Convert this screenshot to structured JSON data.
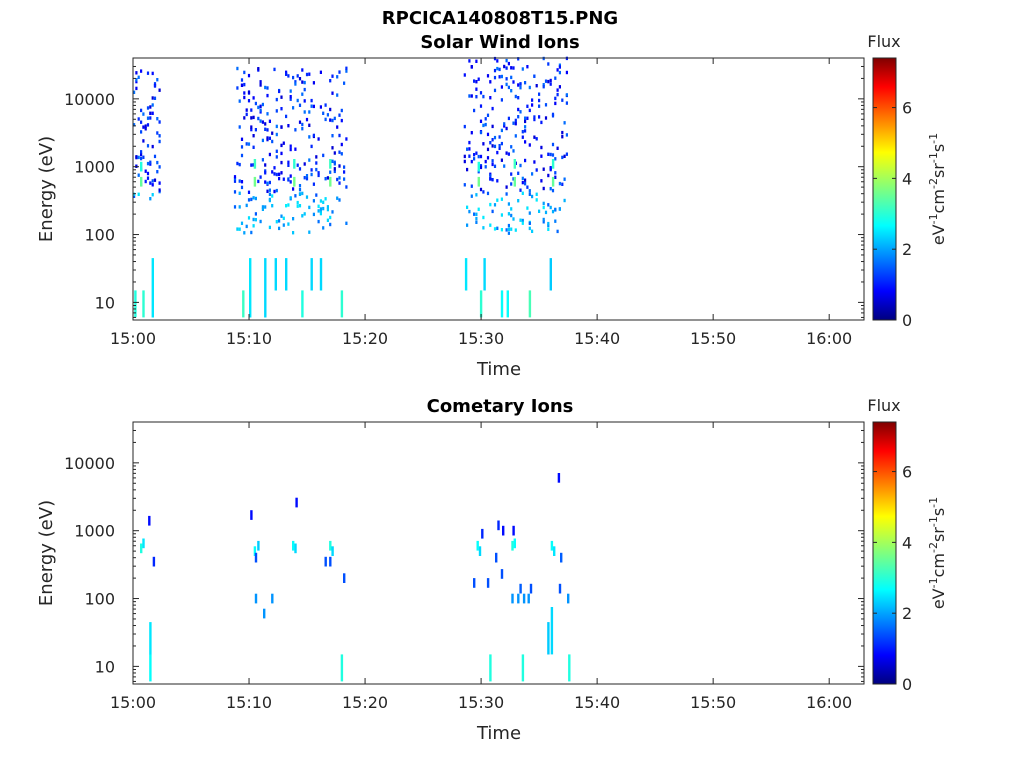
{
  "figure_title": "RPCICA140808T15.PNG",
  "chart_data": [
    {
      "type": "heatmap",
      "title": "Solar Wind Ions",
      "xlabel": "Time",
      "ylabel": "Energy (eV)",
      "x_range": [
        "15:00",
        "16:03"
      ],
      "x_ticks": [
        "15:00",
        "15:10",
        "15:20",
        "15:30",
        "15:40",
        "15:50",
        "16:00"
      ],
      "y_scale": "log",
      "y_range": [
        5.5,
        40000
      ],
      "y_ticks": [
        "10",
        "100",
        "1000",
        "10000"
      ],
      "grid": false,
      "colorbar": {
        "title": "Flux",
        "label": "eV-1cm-2sr-1s-1",
        "range": [
          0,
          7.4
        ],
        "ticks": [
          "0",
          "2",
          "4",
          "6"
        ],
        "colormap": "jet"
      },
      "bursts": [
        {
          "t0": 0.0,
          "t1": 2.2,
          "e_min": 300,
          "e_max": 25000,
          "peak_energy": 600
        },
        {
          "t0": 8.7,
          "t1": 18.4,
          "e_min": 100,
          "e_max": 28000,
          "peak_energy": 650
        },
        {
          "t0": 28.5,
          "t1": 37.5,
          "e_min": 100,
          "e_max": 38000,
          "peak_energy": 650
        }
      ],
      "cells": [
        {
          "t": 0.6,
          "e": 600,
          "v": 3.5
        },
        {
          "t": 0.6,
          "e": 1000,
          "v": 3.0
        },
        {
          "t": 10.4,
          "e": 600,
          "v": 3.6
        },
        {
          "t": 10.4,
          "e": 1100,
          "v": 3.2
        },
        {
          "t": 13.8,
          "e": 600,
          "v": 3.6
        },
        {
          "t": 13.8,
          "e": 1100,
          "v": 3.1
        },
        {
          "t": 16.9,
          "e": 600,
          "v": 3.6
        },
        {
          "t": 16.9,
          "e": 1100,
          "v": 3.2
        },
        {
          "t": 29.7,
          "e": 600,
          "v": 3.6
        },
        {
          "t": 29.7,
          "e": 1000,
          "v": 3.0
        },
        {
          "t": 32.8,
          "e": 600,
          "v": 3.5
        },
        {
          "t": 32.8,
          "e": 1100,
          "v": 3.2
        },
        {
          "t": 36.1,
          "e": 600,
          "v": 3.5
        },
        {
          "t": 36.1,
          "e": 1100,
          "v": 3.1
        }
      ],
      "low_energy_streaks": [
        {
          "t": 0.1,
          "e0": 6,
          "e1": 15,
          "v": 3.0
        },
        {
          "t": 0.8,
          "e0": 6,
          "e1": 15,
          "v": 3.1
        },
        {
          "t": 1.6,
          "e0": 6,
          "e1": 45,
          "v": 2.6
        },
        {
          "t": 9.4,
          "e0": 6,
          "e1": 15,
          "v": 3.2
        },
        {
          "t": 10.0,
          "e0": 6,
          "e1": 45,
          "v": 2.6
        },
        {
          "t": 11.3,
          "e0": 6,
          "e1": 45,
          "v": 2.5
        },
        {
          "t": 12.2,
          "e0": 15,
          "e1": 45,
          "v": 2.5
        },
        {
          "t": 13.1,
          "e0": 15,
          "e1": 45,
          "v": 2.5
        },
        {
          "t": 14.5,
          "e0": 6,
          "e1": 15,
          "v": 3.0
        },
        {
          "t": 15.3,
          "e0": 15,
          "e1": 45,
          "v": 2.5
        },
        {
          "t": 16.1,
          "e0": 15,
          "e1": 45,
          "v": 2.5
        },
        {
          "t": 17.9,
          "e0": 6,
          "e1": 15,
          "v": 3.1
        },
        {
          "t": 28.6,
          "e0": 15,
          "e1": 45,
          "v": 2.6
        },
        {
          "t": 29.9,
          "e0": 6,
          "e1": 15,
          "v": 3.1
        },
        {
          "t": 30.2,
          "e0": 15,
          "e1": 45,
          "v": 2.5
        },
        {
          "t": 31.7,
          "e0": 6,
          "e1": 15,
          "v": 2.8
        },
        {
          "t": 32.2,
          "e0": 6,
          "e1": 15,
          "v": 2.8
        },
        {
          "t": 34.1,
          "e0": 6,
          "e1": 15,
          "v": 3.3
        },
        {
          "t": 35.9,
          "e0": 15,
          "e1": 45,
          "v": 2.4
        }
      ]
    },
    {
      "type": "heatmap",
      "title": "Cometary Ions",
      "xlabel": "Time",
      "ylabel": "Energy (eV)",
      "x_range": [
        "15:00",
        "16:03"
      ],
      "x_ticks": [
        "15:00",
        "15:10",
        "15:20",
        "15:30",
        "15:40",
        "15:50",
        "16:00"
      ],
      "y_scale": "log",
      "y_range": [
        5.5,
        40000
      ],
      "y_ticks": [
        "10",
        "100",
        "1000",
        "10000"
      ],
      "grid": false,
      "colorbar": {
        "title": "Flux",
        "label": "eV-1cm-2sr-1s-1",
        "range": [
          0,
          7.4
        ],
        "ticks": [
          "0",
          "2",
          "4",
          "6"
        ],
        "colormap": "jet"
      },
      "cells": [
        {
          "t": 0.6,
          "e": 550,
          "v": 3.0
        },
        {
          "t": 0.8,
          "e": 650,
          "v": 2.6
        },
        {
          "t": 1.3,
          "e": 1400,
          "v": 1.0
        },
        {
          "t": 1.7,
          "e": 350,
          "v": 1.2
        },
        {
          "t": 10.1,
          "e": 1700,
          "v": 1.0
        },
        {
          "t": 10.4,
          "e": 500,
          "v": 2.8
        },
        {
          "t": 10.5,
          "e": 400,
          "v": 1.5
        },
        {
          "t": 10.7,
          "e": 600,
          "v": 2.4
        },
        {
          "t": 10.5,
          "e": 100,
          "v": 2.0
        },
        {
          "t": 11.2,
          "e": 60,
          "v": 2.0
        },
        {
          "t": 11.9,
          "e": 100,
          "v": 2.0
        },
        {
          "t": 13.7,
          "e": 600,
          "v": 2.8
        },
        {
          "t": 13.9,
          "e": 550,
          "v": 2.5
        },
        {
          "t": 14.0,
          "e": 2600,
          "v": 1.0
        },
        {
          "t": 16.5,
          "e": 350,
          "v": 1.5
        },
        {
          "t": 16.9,
          "e": 600,
          "v": 3.0
        },
        {
          "t": 17.1,
          "e": 500,
          "v": 2.5
        },
        {
          "t": 16.9,
          "e": 350,
          "v": 1.5
        },
        {
          "t": 18.1,
          "e": 200,
          "v": 1.5
        },
        {
          "t": 29.3,
          "e": 170,
          "v": 1.5
        },
        {
          "t": 29.6,
          "e": 600,
          "v": 2.8
        },
        {
          "t": 30.0,
          "e": 900,
          "v": 1.2
        },
        {
          "t": 29.8,
          "e": 500,
          "v": 2.5
        },
        {
          "t": 30.5,
          "e": 170,
          "v": 1.5
        },
        {
          "t": 31.2,
          "e": 400,
          "v": 1.5
        },
        {
          "t": 31.4,
          "e": 1200,
          "v": 1.2
        },
        {
          "t": 31.8,
          "e": 1000,
          "v": 1.0
        },
        {
          "t": 31.7,
          "e": 230,
          "v": 1.5
        },
        {
          "t": 32.6,
          "e": 600,
          "v": 3.0
        },
        {
          "t": 32.8,
          "e": 650,
          "v": 2.8
        },
        {
          "t": 32.7,
          "e": 1000,
          "v": 1.0
        },
        {
          "t": 32.6,
          "e": 100,
          "v": 2.0
        },
        {
          "t": 33.1,
          "e": 100,
          "v": 2.0
        },
        {
          "t": 33.3,
          "e": 140,
          "v": 1.6
        },
        {
          "t": 33.6,
          "e": 100,
          "v": 2.0
        },
        {
          "t": 34.2,
          "e": 140,
          "v": 1.5
        },
        {
          "t": 34.0,
          "e": 100,
          "v": 2.0
        },
        {
          "t": 36.0,
          "e": 600,
          "v": 2.8
        },
        {
          "t": 36.2,
          "e": 500,
          "v": 2.6
        },
        {
          "t": 36.6,
          "e": 6000,
          "v": 1.0
        },
        {
          "t": 36.7,
          "e": 140,
          "v": 1.5
        },
        {
          "t": 36.8,
          "e": 400,
          "v": 1.6
        },
        {
          "t": 37.4,
          "e": 100,
          "v": 2.0
        }
      ],
      "low_energy_streaks": [
        {
          "t": 1.4,
          "e0": 6,
          "e1": 15,
          "v": 2.8
        },
        {
          "t": 1.4,
          "e0": 15,
          "e1": 45,
          "v": 2.6
        },
        {
          "t": 17.9,
          "e0": 6,
          "e1": 15,
          "v": 3.0
        },
        {
          "t": 30.7,
          "e0": 6,
          "e1": 15,
          "v": 3.0
        },
        {
          "t": 33.5,
          "e0": 6,
          "e1": 15,
          "v": 3.0
        },
        {
          "t": 35.7,
          "e0": 15,
          "e1": 45,
          "v": 2.4
        },
        {
          "t": 36.0,
          "e0": 15,
          "e1": 75,
          "v": 2.5
        },
        {
          "t": 37.5,
          "e0": 6,
          "e1": 15,
          "v": 3.0
        }
      ]
    }
  ]
}
